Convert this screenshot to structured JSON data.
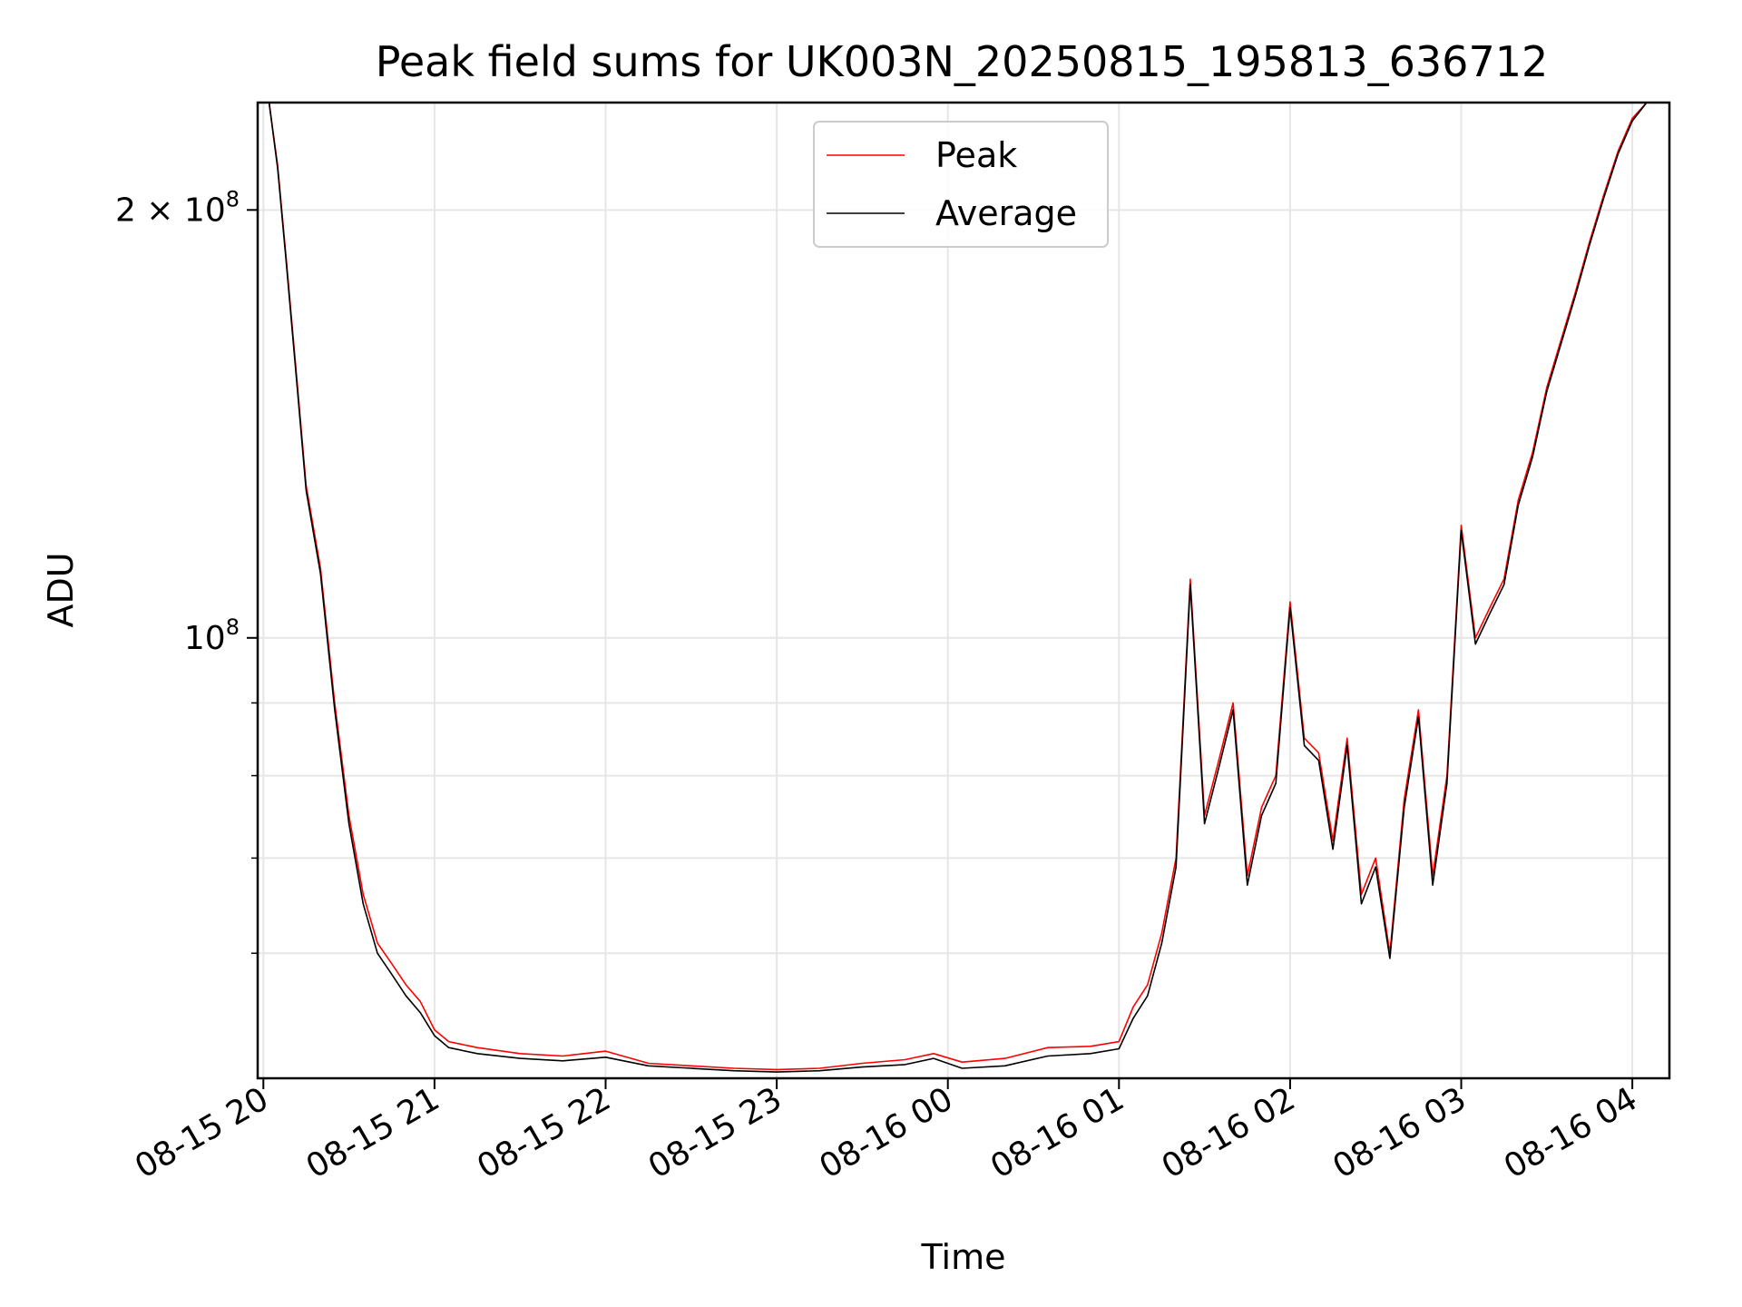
{
  "chart_data": {
    "type": "line",
    "title": "Peak field sums for UK003N_20250815_195813_636712",
    "xlabel": "Time",
    "ylabel": "ADU",
    "x_ticks": [
      "08-15 20",
      "08-15 21",
      "08-15 22",
      "08-15 23",
      "08-16 00",
      "08-16 01",
      "08-16 02",
      "08-16 03",
      "08-16 04"
    ],
    "y_tick_labels": [
      {
        "base": "10",
        "exp": "8",
        "value": 100000000
      },
      {
        "coef": "2 × 10",
        "exp": "8",
        "value": 200000000
      }
    ],
    "y_scale": "log",
    "ylim": [
      49000000,
      238000000
    ],
    "xlim_hours": [
      19.985,
      4.22
    ],
    "x_start": "2025-08-15 19:58",
    "x_end": "2025-08-16 04:13",
    "grid": true,
    "legend_position": "top-center",
    "series": [
      {
        "name": "Peak",
        "color": "#ff0000",
        "x": [
          "2025-08-15 20:02",
          "2025-08-15 20:05",
          "2025-08-15 20:08",
          "2025-08-15 20:12",
          "2025-08-15 20:15",
          "2025-08-15 20:20",
          "2025-08-15 20:25",
          "2025-08-15 20:30",
          "2025-08-15 20:35",
          "2025-08-15 20:40",
          "2025-08-15 20:45",
          "2025-08-15 20:50",
          "2025-08-15 20:55",
          "2025-08-15 21:00",
          "2025-08-15 21:05",
          "2025-08-15 21:15",
          "2025-08-15 21:30",
          "2025-08-15 21:45",
          "2025-08-15 22:00",
          "2025-08-15 22:15",
          "2025-08-15 22:30",
          "2025-08-15 22:45",
          "2025-08-15 23:00",
          "2025-08-15 23:15",
          "2025-08-15 23:30",
          "2025-08-15 23:45",
          "2025-08-15 23:55",
          "2025-08-16 00:05",
          "2025-08-16 00:20",
          "2025-08-16 00:35",
          "2025-08-16 00:50",
          "2025-08-16 01:00",
          "2025-08-16 01:05",
          "2025-08-16 01:10",
          "2025-08-16 01:15",
          "2025-08-16 01:20",
          "2025-08-16 01:25",
          "2025-08-16 01:30",
          "2025-08-16 01:35",
          "2025-08-16 01:40",
          "2025-08-16 01:45",
          "2025-08-16 01:50",
          "2025-08-16 01:55",
          "2025-08-16 02:00",
          "2025-08-16 02:05",
          "2025-08-16 02:10",
          "2025-08-16 02:15",
          "2025-08-16 02:20",
          "2025-08-16 02:25",
          "2025-08-16 02:30",
          "2025-08-16 02:35",
          "2025-08-16 02:40",
          "2025-08-16 02:45",
          "2025-08-16 02:50",
          "2025-08-16 02:55",
          "2025-08-16 03:00",
          "2025-08-16 03:05",
          "2025-08-16 03:10",
          "2025-08-16 03:15",
          "2025-08-16 03:20",
          "2025-08-16 03:25",
          "2025-08-16 03:30",
          "2025-08-16 03:35",
          "2025-08-16 03:40",
          "2025-08-16 03:45",
          "2025-08-16 03:50",
          "2025-08-16 03:55",
          "2025-08-16 04:00",
          "2025-08-16 04:05",
          "2025-08-16 04:10"
        ],
        "y": [
          238000000,
          215000000,
          185000000,
          150000000,
          128000000,
          112000000,
          90000000,
          75000000,
          66000000,
          61000000,
          59000000,
          57000000,
          55500000,
          53000000,
          52000000,
          51500000,
          51000000,
          50800000,
          51200000,
          50200000,
          50000000,
          49800000,
          49700000,
          49800000,
          50200000,
          50500000,
          51000000,
          50300000,
          50600000,
          51500000,
          51600000,
          52000000,
          55000000,
          57000000,
          62000000,
          70000000,
          110000000,
          75000000,
          82000000,
          90000000,
          68000000,
          76000000,
          80000000,
          106000000,
          85000000,
          83000000,
          72000000,
          85000000,
          66000000,
          70000000,
          60000000,
          77000000,
          89000000,
          68000000,
          80000000,
          120000000,
          100000000,
          105000000,
          110000000,
          125000000,
          135000000,
          150000000,
          162000000,
          175000000,
          190000000,
          205000000,
          220000000,
          232000000,
          238000000,
          238000000
        ]
      },
      {
        "name": "Average",
        "color": "#000000",
        "x": [
          "2025-08-15 20:02",
          "2025-08-15 20:05",
          "2025-08-15 20:08",
          "2025-08-15 20:12",
          "2025-08-15 20:15",
          "2025-08-15 20:20",
          "2025-08-15 20:25",
          "2025-08-15 20:30",
          "2025-08-15 20:35",
          "2025-08-15 20:40",
          "2025-08-15 20:45",
          "2025-08-15 20:50",
          "2025-08-15 20:55",
          "2025-08-15 21:00",
          "2025-08-15 21:05",
          "2025-08-15 21:15",
          "2025-08-15 21:30",
          "2025-08-15 21:45",
          "2025-08-15 22:00",
          "2025-08-15 22:15",
          "2025-08-15 22:30",
          "2025-08-15 22:45",
          "2025-08-15 23:00",
          "2025-08-15 23:15",
          "2025-08-15 23:30",
          "2025-08-15 23:45",
          "2025-08-15 23:55",
          "2025-08-16 00:05",
          "2025-08-16 00:20",
          "2025-08-16 00:35",
          "2025-08-16 00:50",
          "2025-08-16 01:00",
          "2025-08-16 01:05",
          "2025-08-16 01:10",
          "2025-08-16 01:15",
          "2025-08-16 01:20",
          "2025-08-16 01:25",
          "2025-08-16 01:30",
          "2025-08-16 01:35",
          "2025-08-16 01:40",
          "2025-08-16 01:45",
          "2025-08-16 01:50",
          "2025-08-16 01:55",
          "2025-08-16 02:00",
          "2025-08-16 02:05",
          "2025-08-16 02:10",
          "2025-08-16 02:15",
          "2025-08-16 02:20",
          "2025-08-16 02:25",
          "2025-08-16 02:30",
          "2025-08-16 02:35",
          "2025-08-16 02:40",
          "2025-08-16 02:45",
          "2025-08-16 02:50",
          "2025-08-16 02:55",
          "2025-08-16 03:00",
          "2025-08-16 03:05",
          "2025-08-16 03:10",
          "2025-08-16 03:15",
          "2025-08-16 03:20",
          "2025-08-16 03:25",
          "2025-08-16 03:30",
          "2025-08-16 03:35",
          "2025-08-16 03:40",
          "2025-08-16 03:45",
          "2025-08-16 03:50",
          "2025-08-16 03:55",
          "2025-08-16 04:00",
          "2025-08-16 04:05",
          "2025-08-16 04:10"
        ],
        "y": [
          238000000,
          214000000,
          184000000,
          149000000,
          127000000,
          111000000,
          89000000,
          74000000,
          65000000,
          60000000,
          58000000,
          56000000,
          54500000,
          52500000,
          51500000,
          51000000,
          50600000,
          50400000,
          50700000,
          50000000,
          49800000,
          49600000,
          49500000,
          49600000,
          49900000,
          50100000,
          50600000,
          49800000,
          50000000,
          50800000,
          51000000,
          51400000,
          54000000,
          56000000,
          61000000,
          69000000,
          109000000,
          74000000,
          81000000,
          89000000,
          67000000,
          75000000,
          79000000,
          105000000,
          84000000,
          82000000,
          71000000,
          84000000,
          65000000,
          69000000,
          59500000,
          76000000,
          88000000,
          67000000,
          79000000,
          119000000,
          99000000,
          104000000,
          109000000,
          124000000,
          134000000,
          149000000,
          161000000,
          174000000,
          189000000,
          204000000,
          219000000,
          231000000,
          238000000,
          238000000
        ]
      }
    ]
  }
}
